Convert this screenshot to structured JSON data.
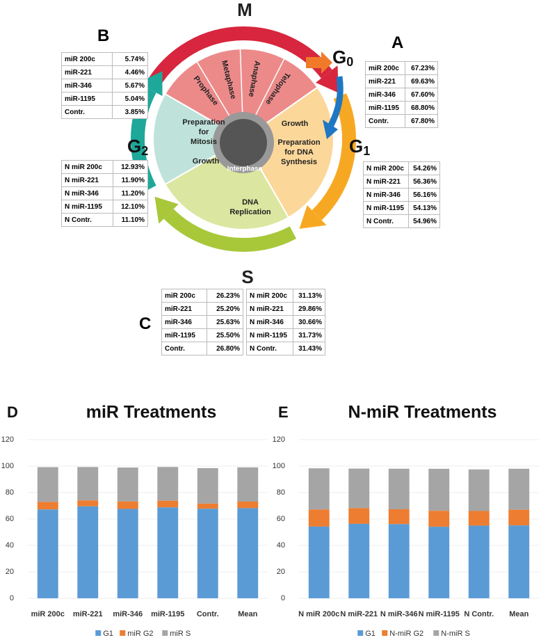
{
  "diagram": {
    "mitosis": "M",
    "g0": {
      "letter": "G",
      "sub": "0"
    },
    "g1": {
      "letter": "G",
      "sub": "1"
    },
    "g2": {
      "letter": "G",
      "sub": "2"
    },
    "s": "S",
    "mitosis_phases": [
      "Prophase",
      "Metaphase",
      "Anaphase",
      "Telophase"
    ],
    "g2_text": {
      "preparation": [
        "Preparation",
        "for",
        "Mitosis"
      ],
      "growth": "Growth"
    },
    "g1_text": {
      "growth": "Growth",
      "preparation": [
        "Preparation",
        "for DNA",
        "Synthesis"
      ]
    },
    "s_text": [
      "DNA",
      "Replication"
    ],
    "center": "Interphase"
  },
  "tables": [
    {
      "label": "A",
      "rows": [
        [
          "miR 200c",
          "67.23%"
        ],
        [
          "miR-221",
          "69.63%"
        ],
        [
          "miR-346",
          "67.60%"
        ],
        [
          "miR-1195",
          "68.80%"
        ],
        [
          "Contr.",
          "67.80%"
        ]
      ]
    },
    {
      "label": "B",
      "rows": [
        [
          "miR 200c",
          "5.74%"
        ],
        [
          "miR-221",
          "4.46%"
        ],
        [
          "miR-346",
          "5.67%"
        ],
        [
          "miR-1195",
          "5.04%"
        ],
        [
          "Contr.",
          "3.85%"
        ]
      ]
    },
    {
      "rows": [
        [
          "N miR 200c",
          "12.93%"
        ],
        [
          "N miR-221",
          "11.90%"
        ],
        [
          "N miR-346",
          "11.20%"
        ],
        [
          "N miR-1195",
          "12.10%"
        ],
        [
          "N Contr.",
          "11.10%"
        ]
      ]
    },
    {
      "rows": [
        [
          "N miR 200c",
          "54.26%"
        ],
        [
          "N miR-221",
          "56.36%"
        ],
        [
          "N miR-346",
          "56.16%"
        ],
        [
          "N miR-1195",
          "54.13%"
        ],
        [
          "N Contr.",
          "54.96%"
        ]
      ]
    },
    {
      "label": "C",
      "rows": [
        [
          "miR 200c",
          "26.23%"
        ],
        [
          "miR-221",
          "25.20%"
        ],
        [
          "miR-346",
          "25.63%"
        ],
        [
          "miR-1195",
          "25.50%"
        ],
        [
          "Contr.",
          "26.80%"
        ]
      ]
    },
    {
      "rows": [
        [
          "N miR 200c",
          "31.13%"
        ],
        [
          "N miR-221",
          "29.86%"
        ],
        [
          "N miR-346",
          "30.66%"
        ],
        [
          "N miR-1195",
          "31.73%"
        ],
        [
          "N Contr.",
          "31.43%"
        ]
      ]
    }
  ],
  "chart_data": [
    {
      "type": "bar",
      "stacked": true,
      "panel": "D",
      "title": "miR Treatments",
      "categories": [
        "miR 200c",
        "miR-221",
        "miR-346",
        "miR-1195",
        "Contr.",
        "Mean"
      ],
      "series": [
        {
          "name": "G1",
          "color": "#5b9bd5",
          "values": [
            67.23,
            69.63,
            67.6,
            68.8,
            67.8,
            68.2
          ]
        },
        {
          "name": "miR G2",
          "color": "#ed7d31",
          "values": [
            5.74,
            4.46,
            5.67,
            5.04,
            3.85,
            4.95
          ]
        },
        {
          "name": "miR S",
          "color": "#a5a5a5",
          "values": [
            26.23,
            25.2,
            25.63,
            25.5,
            26.8,
            25.87
          ]
        }
      ],
      "ylim": [
        0,
        120
      ],
      "yticks": [
        0,
        20,
        40,
        60,
        80,
        100,
        120
      ],
      "grid": true,
      "legend": "bottom"
    },
    {
      "type": "bar",
      "stacked": true,
      "panel": "E",
      "title": "N-miR Treatments",
      "categories": [
        "N miR 200c",
        "N miR-221",
        "N miR-346",
        "N miR-1195",
        "N Contr.",
        "Mean"
      ],
      "series": [
        {
          "name": "G1",
          "color": "#5b9bd5",
          "values": [
            54.26,
            56.36,
            56.16,
            54.13,
            54.96,
            55.17
          ]
        },
        {
          "name": "N-miR G2",
          "color": "#ed7d31",
          "values": [
            12.93,
            11.9,
            11.2,
            12.1,
            11.1,
            11.85
          ]
        },
        {
          "name": "N-miR S",
          "color": "#a5a5a5",
          "values": [
            31.13,
            29.86,
            30.66,
            31.73,
            31.43,
            30.96
          ]
        }
      ],
      "ylim": [
        0,
        120
      ],
      "yticks": [
        0,
        20,
        40,
        60,
        80,
        100,
        120
      ],
      "grid": true,
      "legend": "bottom"
    }
  ]
}
